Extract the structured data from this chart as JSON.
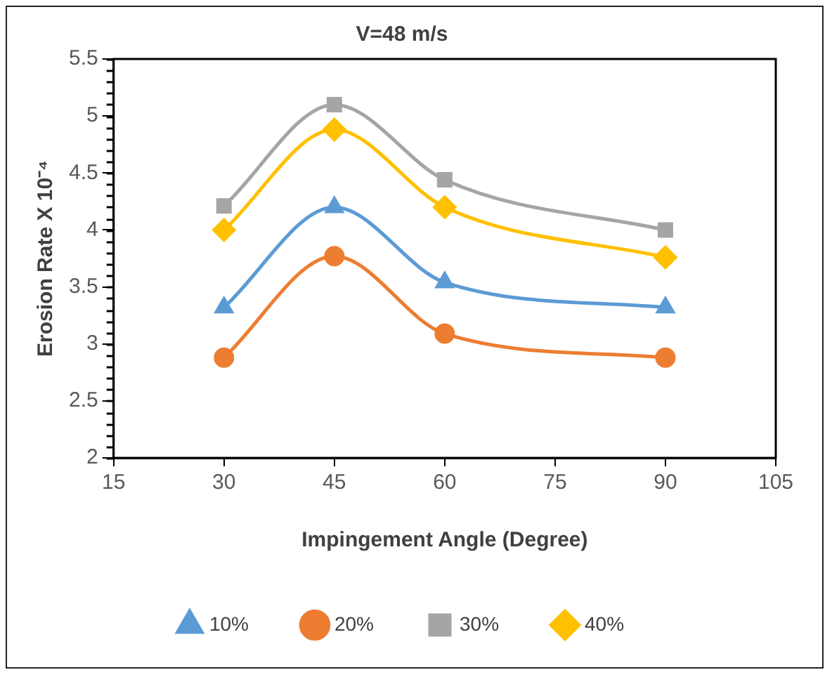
{
  "chart_data": {
    "type": "line",
    "title": "V=48 m/s",
    "xlabel": "Impingement Angle (Degree)",
    "ylabel": "Erosion Rate X 10⁻⁴",
    "x": [
      30,
      45,
      60,
      90
    ],
    "series": [
      {
        "name": "10%",
        "color": "#5b9bd5",
        "marker": "triangle",
        "values": [
          3.32,
          4.2,
          3.54,
          3.32
        ]
      },
      {
        "name": "20%",
        "color": "#ed7d31",
        "marker": "circle",
        "values": [
          2.88,
          3.77,
          3.09,
          2.88
        ]
      },
      {
        "name": "30%",
        "color": "#a5a5a5",
        "marker": "square",
        "values": [
          4.21,
          5.1,
          4.44,
          4.0
        ]
      },
      {
        "name": "40%",
        "color": "#ffc000",
        "marker": "diamond",
        "values": [
          4.0,
          4.88,
          4.2,
          3.76
        ]
      }
    ],
    "xlim": [
      15,
      105
    ],
    "xticks": [
      15,
      30,
      45,
      60,
      75,
      90,
      105
    ],
    "ylim": [
      2,
      5.5
    ],
    "yticks": [
      2,
      2.5,
      3,
      3.5,
      4,
      4.5,
      5,
      5.5
    ],
    "grid": false,
    "legend": "bottom"
  }
}
